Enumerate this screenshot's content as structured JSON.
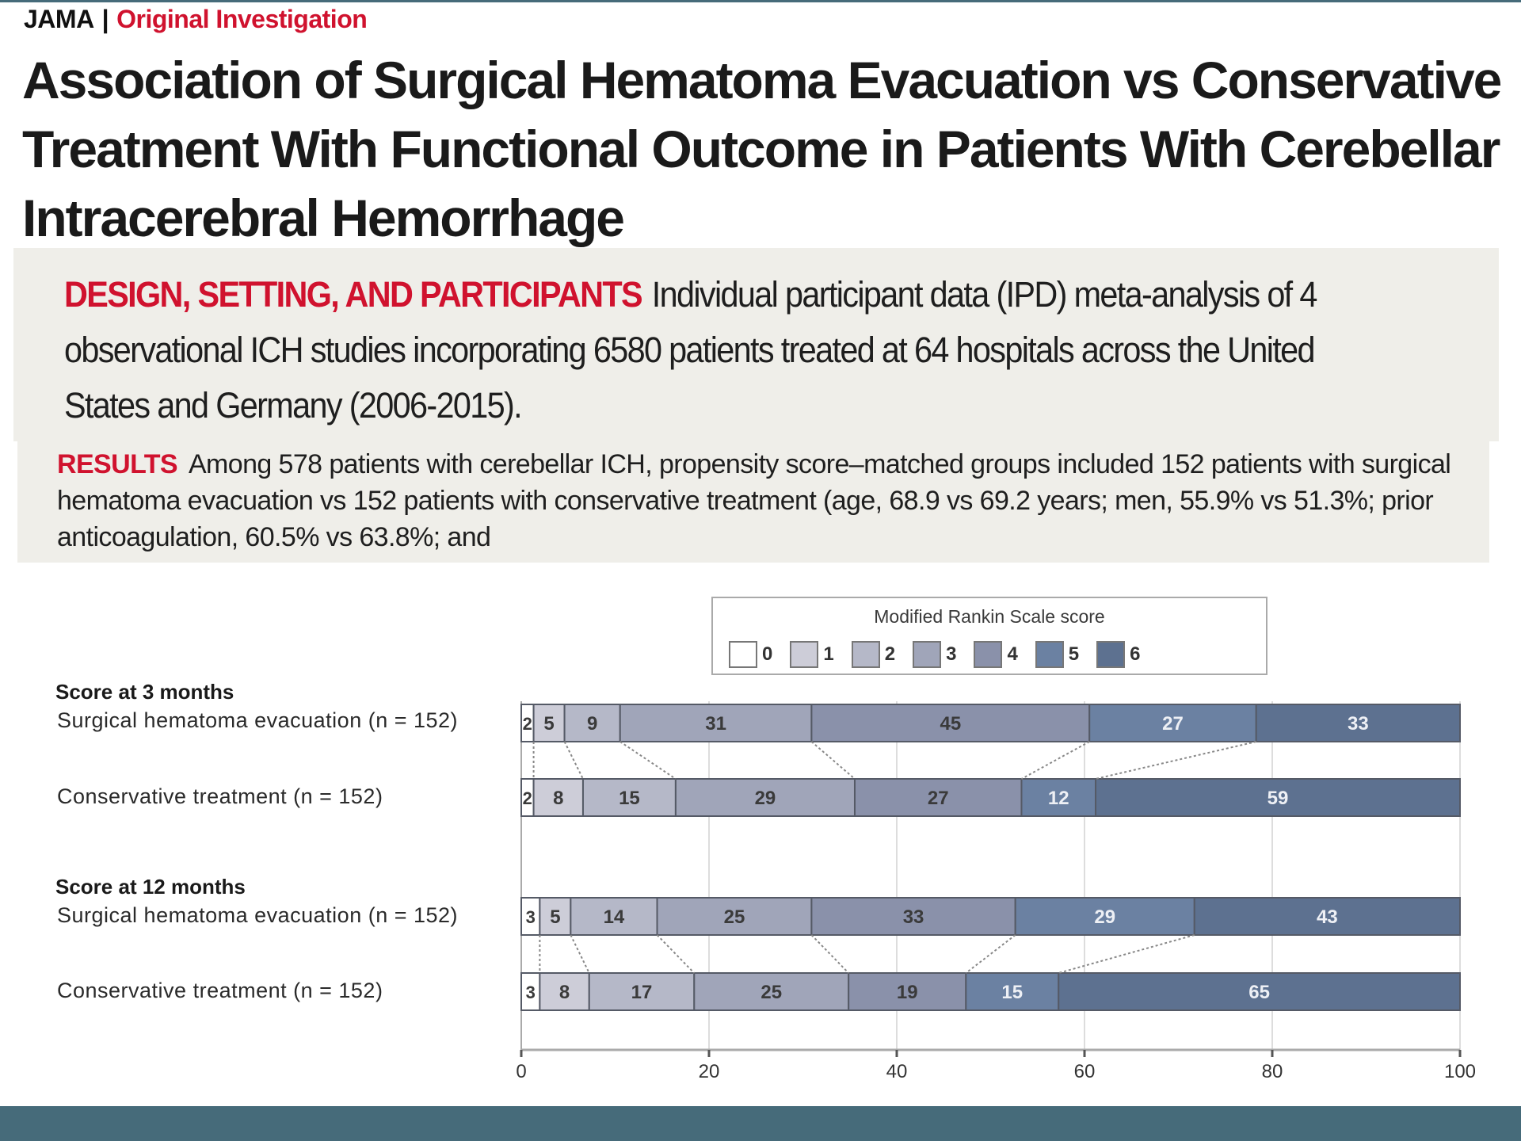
{
  "header": {
    "journal": "JAMA",
    "separator": "|",
    "section": "Original Investigation"
  },
  "title": "Association of Surgical Hematoma Evacuation vs Conservative Treatment With Functional Outcome in Patients With Cerebellar Intracerebral Hemorrhage",
  "abstract": {
    "design_heading": "DESIGN, SETTING, AND PARTICIPANTS",
    "design_text": "Individual participant data (IPD) meta-analysis of 4 observational ICH studies incorporating 6580 patients treated at 64 hospitals across the United States and Germany (2006-2015).",
    "results_heading": "RESULTS",
    "results_text": "Among 578 patients with cerebellar ICH, propensity score–matched groups included 152 patients with surgical hematoma evacuation vs 152 patients with conservative treatment (age, 68.9 vs 69.2 years; men, 55.9% vs 51.3%; prior anticoagulation, 60.5% vs 63.8%; and"
  },
  "colors": {
    "accent_red": "#d0122e",
    "teal_bar": "#466b7a",
    "box_bg": "#efeee9"
  },
  "chart_data": {
    "type": "bar",
    "orientation": "horizontal-stacked",
    "title": "Modified Rankin Scale score",
    "legend": {
      "title": "Modified Rankin Scale score",
      "position": "top-right",
      "entries": [
        "0",
        "1",
        "2",
        "3",
        "4",
        "5",
        "6"
      ],
      "colors": [
        "#ffffff",
        "#cdcdd8",
        "#b5b8c8",
        "#a0a5b9",
        "#8a91aa",
        "#6b81a2",
        "#5d7190"
      ]
    },
    "xlim": [
      0,
      100
    ],
    "xticks": [
      "0",
      "20",
      "40",
      "60",
      "80",
      "100"
    ],
    "grid": true,
    "groups": [
      {
        "label": "Score at 3 months",
        "rows": [
          {
            "label": "Surgical hematoma evacuation (n = 152)",
            "values": [
              2,
              5,
              9,
              31,
              45,
              27,
              33
            ]
          },
          {
            "label": "Conservative treatment (n = 152)",
            "values": [
              2,
              8,
              15,
              29,
              27,
              12,
              59
            ]
          }
        ]
      },
      {
        "label": "Score at 12 months",
        "rows": [
          {
            "label": "Surgical hematoma evacuation (n = 152)",
            "values": [
              3,
              5,
              14,
              25,
              33,
              29,
              43
            ]
          },
          {
            "label": "Conservative treatment (n = 152)",
            "values": [
              3,
              8,
              17,
              25,
              19,
              15,
              65
            ]
          }
        ]
      }
    ]
  }
}
